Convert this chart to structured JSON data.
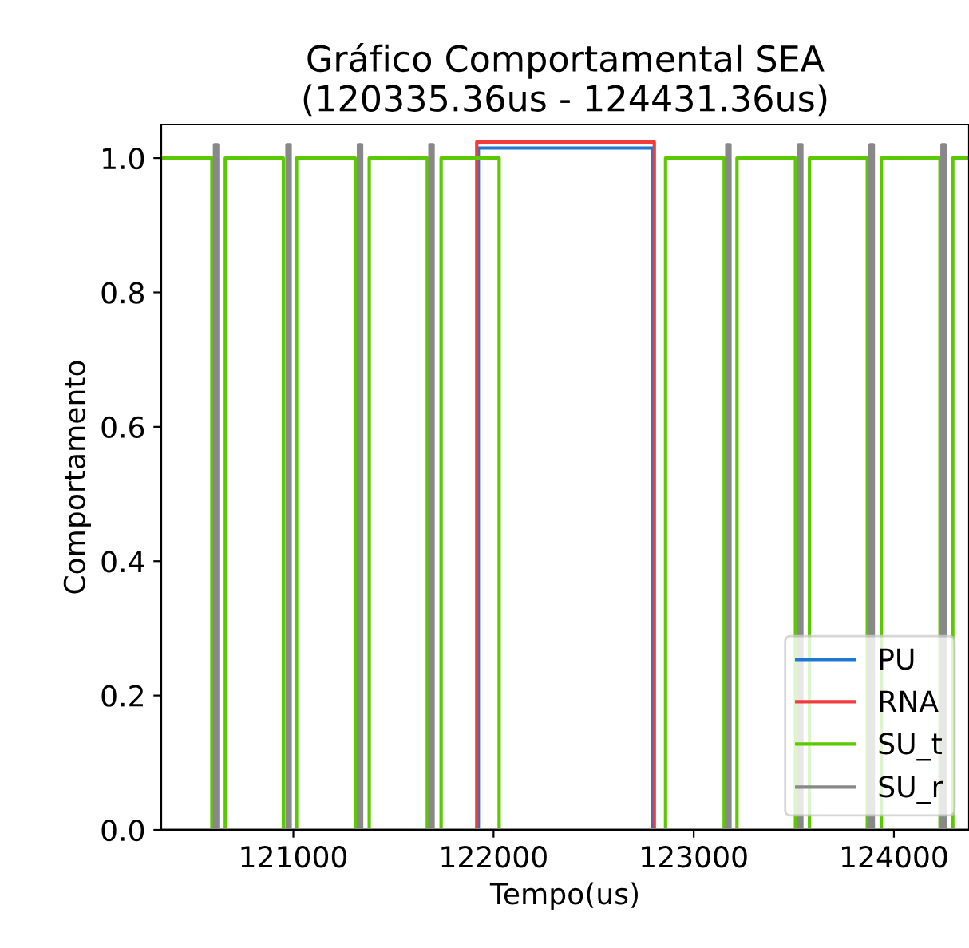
{
  "chart_data": {
    "type": "step",
    "title": "Gráfico Comportamental SEA\n(120335.36us - 124431.36us)",
    "xlabel": "Tempo(us)",
    "ylabel": "Comportamento",
    "xlim": [
      120340,
      124375
    ],
    "xticks": [
      121000,
      122000,
      123000,
      124000
    ],
    "ylim": [
      0,
      1.05
    ],
    "yticks": [
      {
        "value": 0,
        "label": "0.0"
      },
      {
        "value": 0.2,
        "label": "0.2"
      },
      {
        "value": 0.4,
        "label": "0.4"
      },
      {
        "value": 0.6,
        "label": "0.6"
      },
      {
        "value": 0.8,
        "label": "0.8"
      },
      {
        "value": 1.0,
        "label": "1.0"
      }
    ],
    "grid": false,
    "legend": "bottom right",
    "marker": "none",
    "line_style": "solid",
    "series": [
      {
        "name": "PU",
        "color": "#1f77d4",
        "x": [
          120340,
          121924,
          122795,
          124370
        ],
        "values": [
          0,
          1.015,
          0,
          0
        ]
      },
      {
        "name": "RNA",
        "color": "#f03c3c",
        "x": [
          120340,
          121916,
          122803,
          124370
        ],
        "values": [
          0,
          1.024,
          0,
          0
        ]
      },
      {
        "name": "SU_t",
        "color": "#5cc800",
        "x": [
          120340,
          120593,
          120660,
          120950,
          121016,
          121309,
          121379,
          121669,
          121738,
          122028,
          122859,
          123152,
          123216,
          123508,
          123578,
          123867,
          123937,
          124230,
          124294,
          124370
        ],
        "values": [
          1,
          0,
          1,
          0,
          1,
          0,
          1,
          0,
          1,
          0,
          1,
          0,
          1,
          0,
          1,
          0,
          1,
          0,
          1,
          1
        ]
      },
      {
        "name": "SU_r",
        "color": "#888888",
        "x": [
          120340,
          120606,
          120622,
          120968,
          120984,
          121325,
          121341,
          121682,
          121698,
          123165,
          123181,
          123524,
          123540,
          123881,
          123897,
          124240,
          124256,
          124370
        ],
        "values": [
          0,
          1.02,
          0,
          1.02,
          0,
          1.02,
          0,
          1.02,
          0,
          1.02,
          0,
          1.02,
          0,
          1.02,
          0,
          1.02,
          0,
          0
        ]
      }
    ]
  }
}
